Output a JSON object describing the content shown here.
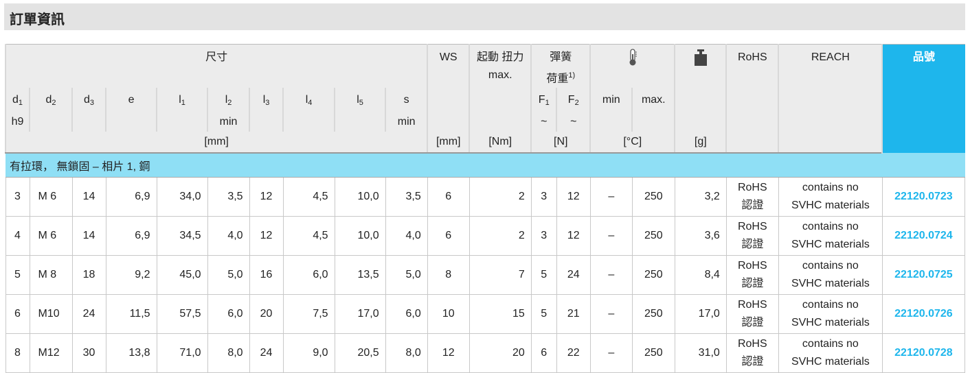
{
  "title": "訂單資訊",
  "header": {
    "dimensions": "尺寸",
    "cols": [
      {
        "n": "d",
        "s": "1",
        "sub2": "h9"
      },
      {
        "n": "d",
        "s": "2",
        "sub2": ""
      },
      {
        "n": "d",
        "s": "3",
        "sub2": ""
      },
      {
        "n": "e",
        "s": "",
        "sub2": ""
      },
      {
        "n": "l",
        "s": "1",
        "sub2": ""
      },
      {
        "n": "l",
        "s": "2",
        "sub2": "min"
      },
      {
        "n": "l",
        "s": "3",
        "sub2": ""
      },
      {
        "n": "l",
        "s": "4",
        "sub2": ""
      },
      {
        "n": "l",
        "s": "5",
        "sub2": ""
      },
      {
        "n": "s",
        "s": "",
        "sub2": "min"
      }
    ],
    "dim_unit": "[mm]",
    "ws": "WS",
    "ws_unit": "[mm]",
    "torque": "起動 扭力",
    "torque_sub": "max.",
    "torque_unit": "[Nm]",
    "spring": "彈簧",
    "spring2": "荷重",
    "spring_note": "1)",
    "f1": "F",
    "f1s": "1",
    "f2": "F",
    "f2s": "2",
    "tilde": "~",
    "spring_unit": "[N]",
    "temp_icon": "thermometer-icon",
    "temp_min": "min",
    "temp_max": "max.",
    "temp_unit": "[°C]",
    "weight_icon": "weight-icon",
    "weight_unit": "[g]",
    "rohs": "RoHS",
    "reach": "REACH",
    "part_no": "品號"
  },
  "group": "有拉環， 無鎖固 – 相片 1, 鋼",
  "colors": {
    "accent": "#1eb6ec",
    "group_bg": "#8fdff5",
    "header_bg": "#ececec"
  },
  "rows": [
    {
      "d1": "3",
      "d2": "M 6",
      "d3": "14",
      "e": "6,9",
      "l1": "34,0",
      "l2": "3,5",
      "l3": "12",
      "l4": "4,5",
      "l5": "10,0",
      "s": "3,5",
      "ws": "6",
      "torque": "2",
      "f1": "3",
      "f2": "12",
      "tmin": "–",
      "tmax": "250",
      "w": "3,2",
      "rohs1": "RoHS",
      "rohs2": "認證",
      "reach1": "contains no",
      "reach2": "SVHC materials",
      "pn": "22120.0723"
    },
    {
      "d1": "4",
      "d2": "M 6",
      "d3": "14",
      "e": "6,9",
      "l1": "34,5",
      "l2": "4,0",
      "l3": "12",
      "l4": "4,5",
      "l5": "10,0",
      "s": "4,0",
      "ws": "6",
      "torque": "2",
      "f1": "3",
      "f2": "12",
      "tmin": "–",
      "tmax": "250",
      "w": "3,6",
      "rohs1": "RoHS",
      "rohs2": "認證",
      "reach1": "contains no",
      "reach2": "SVHC materials",
      "pn": "22120.0724"
    },
    {
      "d1": "5",
      "d2": "M 8",
      "d3": "18",
      "e": "9,2",
      "l1": "45,0",
      "l2": "5,0",
      "l3": "16",
      "l4": "6,0",
      "l5": "13,5",
      "s": "5,0",
      "ws": "8",
      "torque": "7",
      "f1": "5",
      "f2": "24",
      "tmin": "–",
      "tmax": "250",
      "w": "8,4",
      "rohs1": "RoHS",
      "rohs2": "認證",
      "reach1": "contains no",
      "reach2": "SVHC materials",
      "pn": "22120.0725"
    },
    {
      "d1": "6",
      "d2": "M10",
      "d3": "24",
      "e": "11,5",
      "l1": "57,5",
      "l2": "6,0",
      "l3": "20",
      "l4": "7,5",
      "l5": "17,0",
      "s": "6,0",
      "ws": "10",
      "torque": "15",
      "f1": "5",
      "f2": "21",
      "tmin": "–",
      "tmax": "250",
      "w": "17,0",
      "rohs1": "RoHS",
      "rohs2": "認證",
      "reach1": "contains no",
      "reach2": "SVHC materials",
      "pn": "22120.0726"
    },
    {
      "d1": "8",
      "d2": "M12",
      "d3": "30",
      "e": "13,8",
      "l1": "71,0",
      "l2": "8,0",
      "l3": "24",
      "l4": "9,0",
      "l5": "20,5",
      "s": "8,0",
      "ws": "12",
      "torque": "20",
      "f1": "6",
      "f2": "22",
      "tmin": "–",
      "tmax": "250",
      "w": "31,0",
      "rohs1": "RoHS",
      "rohs2": "認證",
      "reach1": "contains no",
      "reach2": "SVHC materials",
      "pn": "22120.0728"
    }
  ]
}
